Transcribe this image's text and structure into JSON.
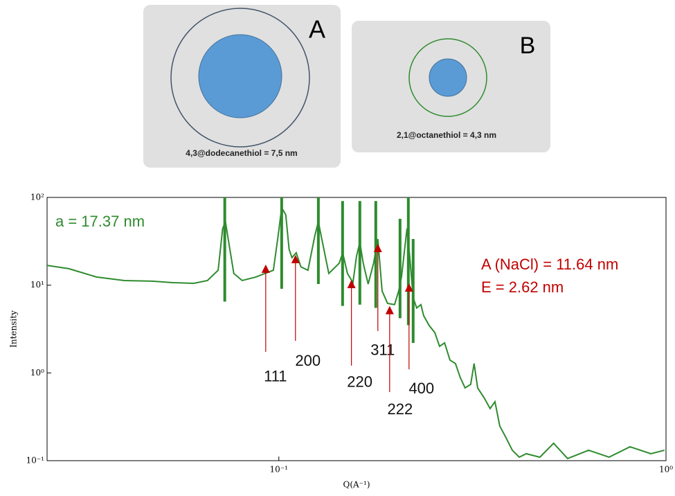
{
  "panels": [
    {
      "letter": "A",
      "caption": "4,3@dodecanethiol = 7,5 nm"
    },
    {
      "letter": "B",
      "caption": "2,1@octanethiol = 4,3 nm"
    }
  ],
  "chart_data": {
    "type": "line",
    "xlabel": "Q(A⁻¹)",
    "ylabel": "Intensity",
    "xscale": "log",
    "yscale": "log",
    "xlim": [
      0.0252,
      1
    ],
    "ylim": [
      0.1,
      100
    ],
    "xticks": [
      {
        "value": 0.1,
        "label": "10⁻¹"
      },
      {
        "value": 1,
        "label": "10⁰"
      }
    ],
    "yticks": [
      {
        "value": 0.1,
        "label": "10⁻¹"
      },
      {
        "value": 1,
        "label": "10⁰"
      },
      {
        "value": 10,
        "label": "10¹"
      },
      {
        "value": 100,
        "label": "10²"
      }
    ],
    "series": [
      {
        "name": "a = 17.37 nm",
        "color": "#2e8b2e",
        "x": [
          0.0252,
          0.0287,
          0.0338,
          0.0399,
          0.0471,
          0.0532,
          0.0603,
          0.0654,
          0.0697,
          0.0716,
          0.0728,
          0.074,
          0.0765,
          0.0804,
          0.0873,
          0.0968,
          0.0996,
          0.1017,
          0.1042,
          0.1063,
          0.1081,
          0.1109,
          0.114,
          0.1189,
          0.1239,
          0.1265,
          0.1291,
          0.1346,
          0.1432,
          0.1462,
          0.1504,
          0.1554,
          0.1587,
          0.1619,
          0.1652,
          0.1701,
          0.1757,
          0.1802,
          0.1848,
          0.1909,
          0.199,
          0.204,
          0.2074,
          0.2143,
          0.2178,
          0.2223,
          0.227,
          0.2328,
          0.2366,
          0.2445,
          0.2528,
          0.2601,
          0.268,
          0.2767,
          0.2859,
          0.2941,
          0.3027,
          0.313,
          0.3194,
          0.3262,
          0.3396,
          0.3513,
          0.3616,
          0.3721,
          0.3846,
          0.4009,
          0.4179,
          0.4355,
          0.4723,
          0.5125,
          0.557,
          0.631,
          0.713,
          0.8072,
          0.914,
          0.9908
        ],
        "values": [
          16.8,
          15.4,
          12.4,
          11.3,
          11.1,
          10.7,
          10.5,
          11.3,
          14.8,
          44.2,
          53.0,
          33.6,
          13.6,
          11.3,
          12.4,
          14.8,
          36.8,
          76.2,
          63.5,
          25.6,
          20.6,
          23.4,
          16.2,
          14.8,
          36.8,
          53.0,
          33.6,
          13.6,
          17.8,
          23.4,
          13.6,
          10.7,
          21.3,
          30.7,
          17.8,
          10.3,
          17.8,
          33.6,
          8.6,
          6.2,
          6.0,
          8.6,
          12.4,
          44.2,
          21.3,
          7.2,
          5.5,
          6.0,
          4.5,
          3.47,
          2.89,
          2.01,
          2.2,
          1.4,
          1.28,
          0.887,
          0.675,
          0.74,
          1.28,
          0.675,
          0.514,
          0.392,
          0.47,
          0.248,
          0.189,
          0.1315,
          0.1096,
          0.12,
          0.1096,
          0.158,
          0.1057,
          0.1315,
          0.1096,
          0.144,
          0.12,
          0.1315
        ]
      }
    ],
    "peak_lines": {
      "color": "#2e8b2e",
      "x": [
        0.0725,
        0.1017,
        0.1265,
        0.1461,
        0.1619,
        0.178,
        0.2056,
        0.216,
        0.2223
      ],
      "low": [
        6.5,
        9.1,
        10.3,
        5.8,
        6.0,
        5.5,
        4.2,
        3.5,
        2.2
      ],
      "high": [
        103,
        144,
        127,
        91,
        91,
        91,
        57,
        103,
        33.6
      ]
    },
    "annotations": [
      {
        "text": "A (NaCl) = 11.64 nm",
        "color": "#c00000"
      },
      {
        "text": "E = 2.62 nm",
        "color": "#c00000"
      }
    ],
    "arrows": {
      "color": "#c00000",
      "labels": [
        "111",
        "200",
        "220",
        "311",
        "222",
        "400"
      ],
      "x": [
        0.0925,
        0.1104,
        0.154,
        0.1802,
        0.1933,
        0.2169
      ],
      "y": [
        17.2,
        22.1,
        11.5,
        29.6,
        5.8,
        10.5
      ],
      "y_from": [
        1.74,
        2.32,
        1.21,
        3.0,
        0.605,
        1.1
      ]
    }
  }
}
